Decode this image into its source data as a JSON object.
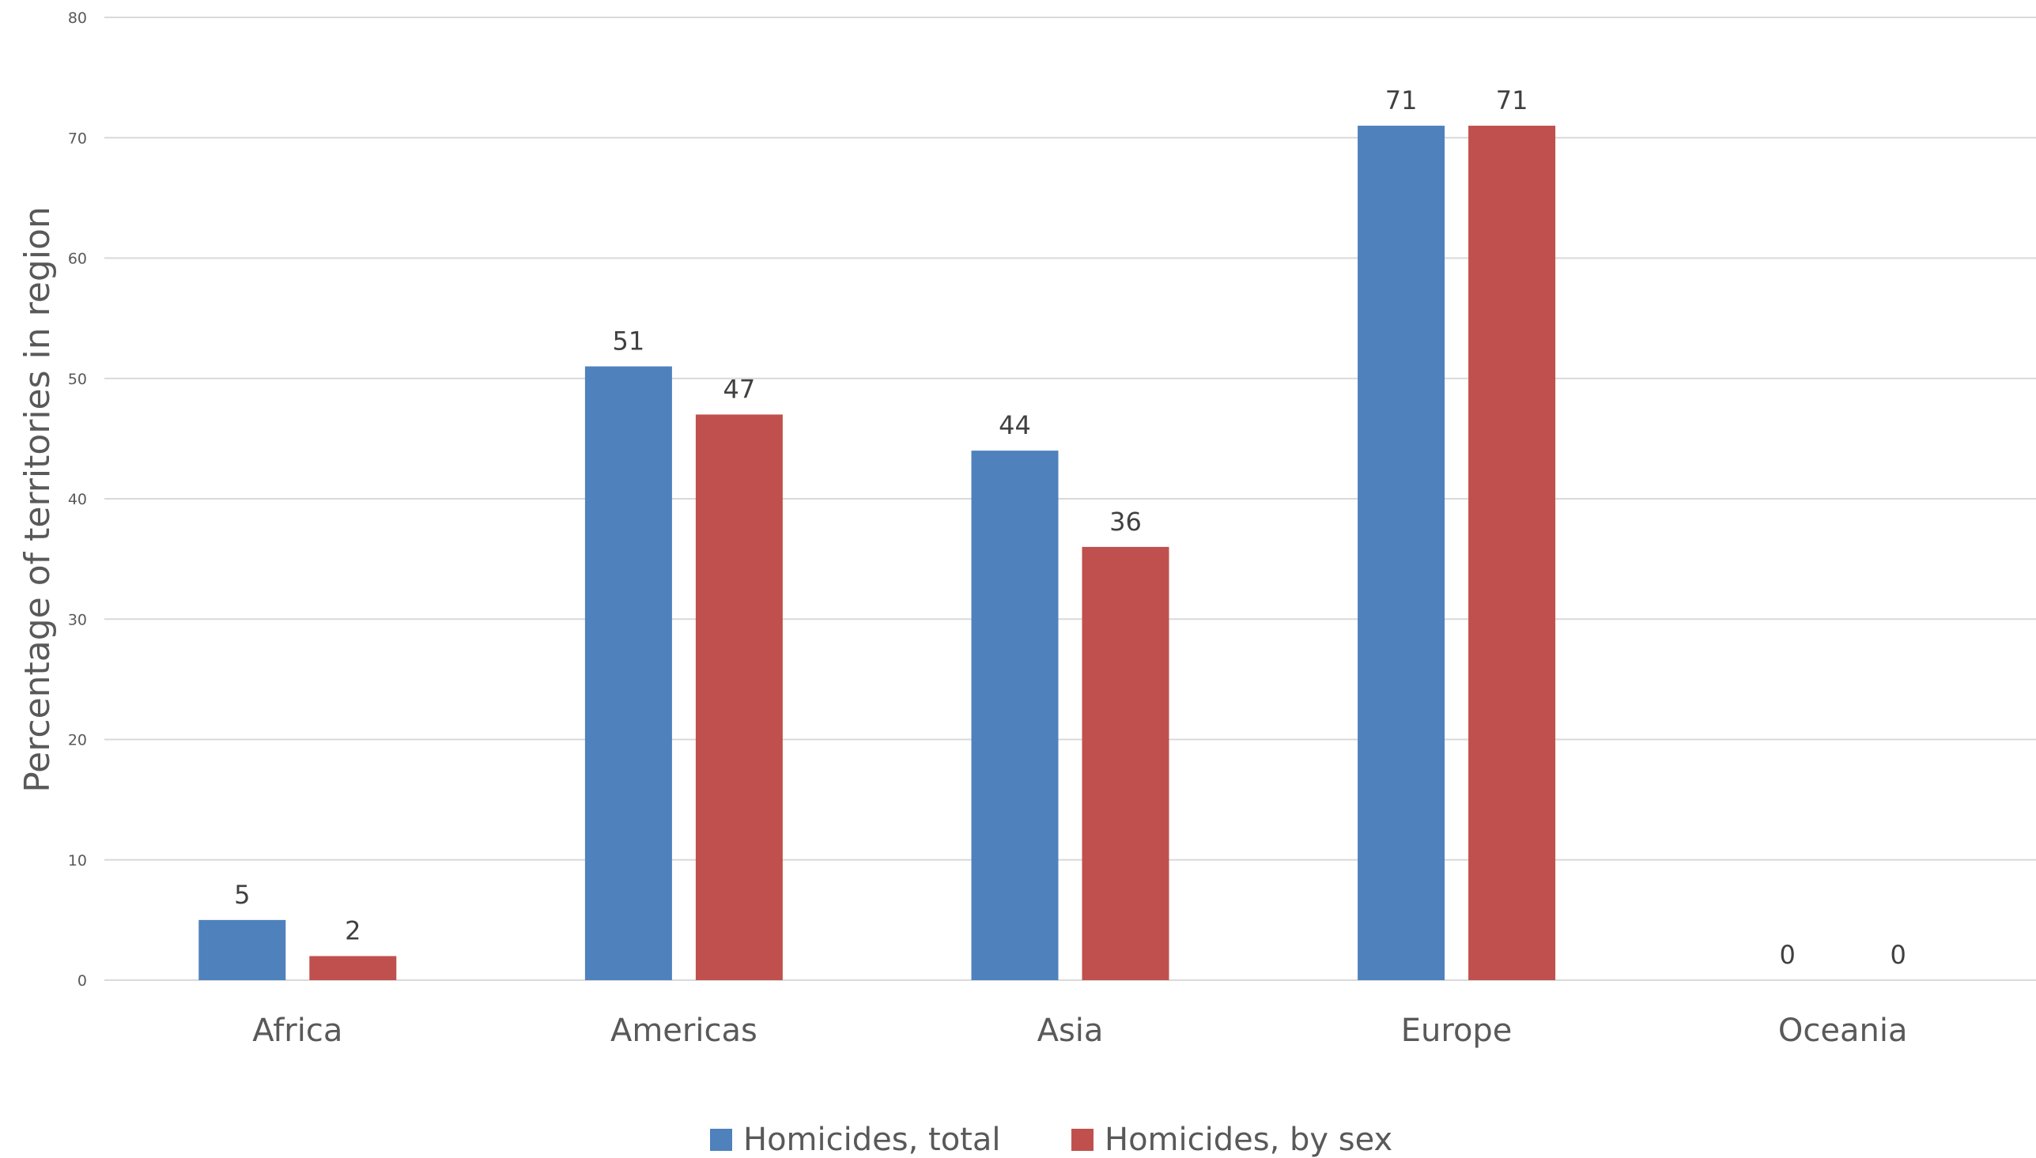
{
  "chart_data": {
    "type": "bar",
    "title": "",
    "xlabel": "",
    "ylabel": "Percentage of territories in region",
    "categories": [
      "Africa",
      "Americas",
      "Asia",
      "Europe",
      "Oceania"
    ],
    "series": [
      {
        "name": "Homicides, total",
        "color": "#4f81bd",
        "values": [
          5,
          51,
          44,
          71,
          0
        ]
      },
      {
        "name": "Homicides, by sex",
        "color": "#c0504d",
        "values": [
          2,
          47,
          36,
          71,
          0
        ]
      }
    ],
    "data_labels": [
      [
        "5",
        "51",
        "44",
        "71",
        "0"
      ],
      [
        "2",
        "47",
        "36",
        "71",
        "0"
      ]
    ],
    "ylim": [
      0,
      80
    ],
    "yticks": [
      0,
      10,
      20,
      30,
      40,
      50,
      60,
      70,
      80
    ],
    "grid": true,
    "legend_position": "bottom"
  }
}
